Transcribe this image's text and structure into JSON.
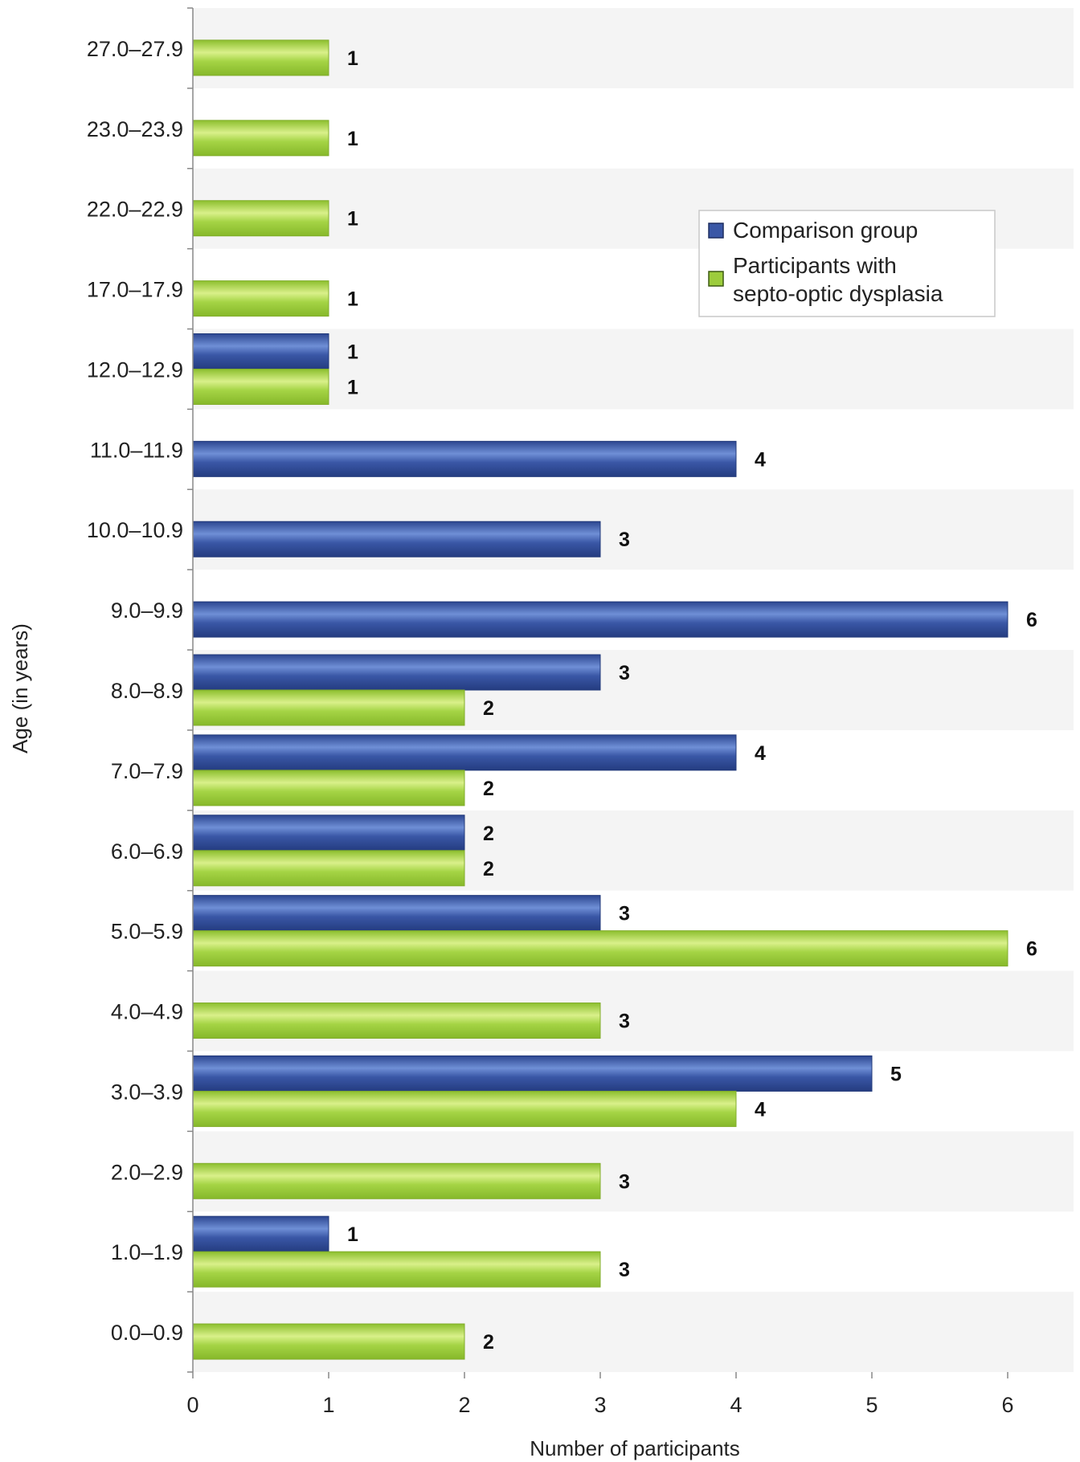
{
  "chart_data": {
    "type": "bar",
    "orientation": "horizontal",
    "categories": [
      "0.0–0.9",
      "1.0–1.9",
      "2.0–2.9",
      "3.0–3.9",
      "4.0–4.9",
      "5.0–5.9",
      "6.0–6.9",
      "7.0–7.9",
      "8.0–8.9",
      "9.0–9.9",
      "10.0–10.9",
      "11.0–11.9",
      "12.0–12.9",
      "17.0–17.9",
      "22.0–22.9",
      "23.0–23.9",
      "27.0–27.9"
    ],
    "series": [
      {
        "name": "Comparison group",
        "color": "#3a57a6",
        "values": [
          null,
          1,
          null,
          5,
          null,
          3,
          2,
          4,
          3,
          6,
          3,
          4,
          1,
          null,
          null,
          null,
          null
        ]
      },
      {
        "name": "Participants with septo-optic dysplasia",
        "color": "#9ccc3c",
        "values": [
          2,
          3,
          3,
          4,
          3,
          6,
          2,
          2,
          2,
          null,
          null,
          null,
          1,
          1,
          1,
          1,
          1
        ]
      }
    ],
    "xlabel": "Number of participants",
    "ylabel": "Age (in years)",
    "xlim": [
      0,
      6.5
    ],
    "xticks": [
      "0",
      "1",
      "2",
      "3",
      "4",
      "5",
      "6"
    ],
    "legend": {
      "position": "upper-right",
      "entries": [
        "Comparison group",
        "Participants with",
        "septo-optic dysplasia"
      ]
    },
    "grid": false
  }
}
